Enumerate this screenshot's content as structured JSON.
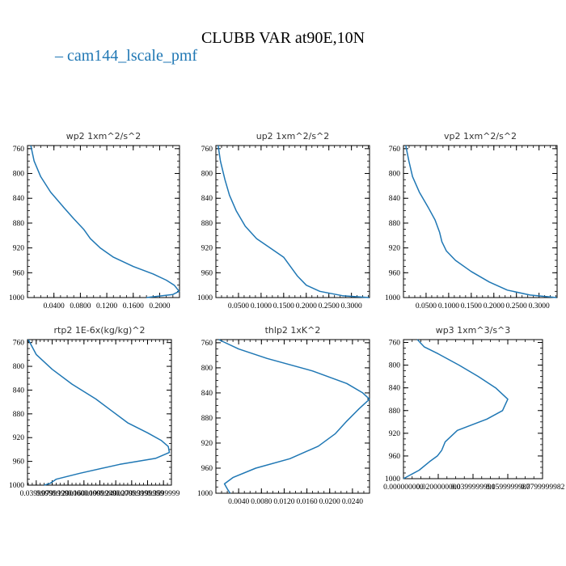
{
  "title": "CLUBB VAR at90E,10N",
  "legend": {
    "label": "cam144_lscale_pmf",
    "color": "#1f77b4"
  },
  "chart_data": [
    {
      "type": "line",
      "title": "wp2   1xm^2/s^2",
      "xlim": [
        0.0,
        0.23
      ],
      "ylim": [
        1000,
        755
      ],
      "xticks": [
        0.04,
        0.08,
        0.12,
        0.16,
        0.2
      ],
      "xtick_labels": [
        "0.0400",
        "0.0800",
        "0.1200",
        "0.1600",
        "0.2000"
      ],
      "yticks": [
        760,
        800,
        840,
        880,
        920,
        960,
        1000
      ],
      "series": [
        {
          "name": "cam144_lscale_pmf",
          "x": [
            0.005,
            0.01,
            0.02,
            0.035,
            0.055,
            0.07,
            0.085,
            0.095,
            0.11,
            0.13,
            0.16,
            0.19,
            0.21,
            0.222,
            0.2295,
            0.22,
            0.18
          ],
          "y": [
            755,
            780,
            805,
            830,
            855,
            873,
            890,
            905,
            920,
            935,
            950,
            962,
            972,
            980,
            990,
            995,
            1000
          ]
        }
      ]
    },
    {
      "type": "line",
      "title": "up2   1xm^2/s^2",
      "xlim": [
        0.0,
        0.34
      ],
      "ylim": [
        1000,
        755
      ],
      "xticks": [
        0.05,
        0.1,
        0.15,
        0.2,
        0.25,
        0.3
      ],
      "xtick_labels": [
        "0.0500",
        "0.1000",
        "0.1500",
        "0.2000",
        "0.2500",
        "0.3000"
      ],
      "yticks": [
        760,
        800,
        840,
        880,
        920,
        960,
        1000
      ],
      "series": [
        {
          "name": "cam144_lscale_pmf",
          "x": [
            0.005,
            0.01,
            0.02,
            0.03,
            0.045,
            0.065,
            0.09,
            0.12,
            0.15,
            0.165,
            0.18,
            0.2,
            0.23,
            0.28,
            0.339
          ],
          "y": [
            755,
            780,
            810,
            835,
            860,
            885,
            905,
            920,
            935,
            950,
            965,
            980,
            990,
            997,
            1000
          ]
        }
      ]
    },
    {
      "type": "line",
      "title": "vp2   1xm^2/s^2",
      "xlim": [
        0.0,
        0.34
      ],
      "ylim": [
        1000,
        755
      ],
      "xticks": [
        0.05,
        0.1,
        0.15,
        0.2,
        0.25,
        0.3
      ],
      "xtick_labels": [
        "0.0500",
        "0.1000",
        "0.1500",
        "0.2000",
        "0.2500",
        "0.3000"
      ],
      "yticks": [
        760,
        800,
        840,
        880,
        920,
        960,
        1000
      ],
      "series": [
        {
          "name": "cam144_lscale_pmf",
          "x": [
            0.005,
            0.012,
            0.02,
            0.035,
            0.055,
            0.07,
            0.08,
            0.085,
            0.095,
            0.115,
            0.15,
            0.19,
            0.23,
            0.28,
            0.339
          ],
          "y": [
            755,
            780,
            805,
            830,
            855,
            875,
            895,
            910,
            925,
            940,
            958,
            975,
            988,
            996,
            1000
          ]
        }
      ]
    },
    {
      "type": "line",
      "title": "rtp2   1E-6x(kg/kg)^2",
      "xlim": [
        0.018,
        0.38
      ],
      "ylim": [
        1000,
        755
      ],
      "xticks": [
        0.04,
        0.08,
        0.12,
        0.16,
        0.2,
        0.24,
        0.28,
        0.32,
        0.36
      ],
      "xtick_labels": [
        "0.0399999",
        "0.0799999",
        "0.1200000",
        "0.1600000",
        "0.1999999",
        "0.2400000",
        "0.2799999",
        "0.3199999",
        "0.3599999"
      ],
      "yticks": [
        760,
        800,
        840,
        880,
        920,
        960,
        1000
      ],
      "series": [
        {
          "name": "cam144_lscale_pmf",
          "x": [
            0.02,
            0.04,
            0.08,
            0.13,
            0.19,
            0.23,
            0.27,
            0.32,
            0.355,
            0.372,
            0.375,
            0.34,
            0.25,
            0.15,
            0.09,
            0.075,
            0.06
          ],
          "y": [
            755,
            780,
            805,
            830,
            855,
            875,
            895,
            912,
            925,
            935,
            945,
            955,
            965,
            980,
            990,
            997,
            1000
          ]
        }
      ]
    },
    {
      "type": "line",
      "title": "thlp2   1xK^2",
      "xlim": [
        0.0,
        0.027
      ],
      "ylim": [
        1000,
        755
      ],
      "xticks": [
        0.004,
        0.008,
        0.012,
        0.016,
        0.02,
        0.024
      ],
      "xtick_labels": [
        "0.0040",
        "0.0080",
        "0.0120",
        "0.0160",
        "0.0200",
        "0.0240"
      ],
      "yticks": [
        760,
        800,
        840,
        880,
        920,
        960,
        1000
      ],
      "series": [
        {
          "name": "cam144_lscale_pmf",
          "x": [
            0.0005,
            0.004,
            0.009,
            0.017,
            0.023,
            0.0258,
            0.027,
            0.0252,
            0.023,
            0.021,
            0.018,
            0.013,
            0.007,
            0.003,
            0.0015,
            0.002,
            0.0025
          ],
          "y": [
            755,
            770,
            785,
            805,
            825,
            840,
            850,
            865,
            885,
            905,
            925,
            945,
            960,
            975,
            985,
            993,
            1000
          ]
        }
      ]
    },
    {
      "type": "line",
      "title": "wp3   1xm^3/s^3",
      "xlim": [
        0.0,
        0.08
      ],
      "ylim": [
        1000,
        755
      ],
      "xticks": [
        0.0,
        0.02,
        0.04,
        0.06,
        0.08
      ],
      "xtick_labels": [
        "0.000000000",
        "0.0200000000",
        "0.0399999991",
        "0.0599999987",
        "0.0799999982"
      ],
      "yticks": [
        760,
        800,
        840,
        880,
        920,
        960,
        1000
      ],
      "series": [
        {
          "name": "cam144_lscale_pmf",
          "x": [
            0.008,
            0.012,
            0.02,
            0.032,
            0.043,
            0.053,
            0.06,
            0.057,
            0.048,
            0.031,
            0.024,
            0.022,
            0.0195,
            0.015,
            0.009,
            0.003,
            0.0
          ],
          "y": [
            755,
            768,
            780,
            800,
            820,
            840,
            860,
            880,
            895,
            915,
            935,
            950,
            960,
            970,
            985,
            995,
            1000
          ]
        }
      ]
    }
  ]
}
